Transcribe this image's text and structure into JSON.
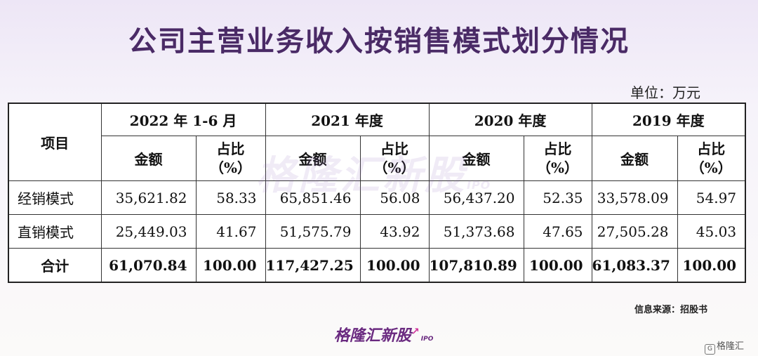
{
  "title": "公司主营业务收入按销售模式划分情况",
  "unit": "单位：万元",
  "watermark": {
    "text": "格隆汇新股",
    "sub": "IPO"
  },
  "table": {
    "item_header": "项目",
    "periods": [
      "2022 年 1-6 月",
      "2021 年度",
      "2020 年度",
      "2019 年度"
    ],
    "amount_header": "金额",
    "pct_header_line1": "占比",
    "pct_header_line2": "（%）",
    "rows": [
      {
        "label": "经销模式",
        "cells": [
          "35,621.82",
          "58.33",
          "65,851.46",
          "56.08",
          "56,437.20",
          "52.35",
          "33,578.09",
          "54.97"
        ]
      },
      {
        "label": "直销模式",
        "cells": [
          "25,449.03",
          "41.67",
          "51,575.79",
          "43.92",
          "51,373.68",
          "47.65",
          "27,505.28",
          "45.03"
        ]
      }
    ],
    "total": {
      "label": "合计",
      "cells": [
        "61,070.84",
        "100.00",
        "117,427.25",
        "100.00",
        "107,810.89",
        "100.00",
        "61,083.37",
        "100.00"
      ]
    }
  },
  "source": "信息来源：招股书",
  "logo": {
    "text": "格隆汇新股",
    "sub": "IPO"
  },
  "corner_brand": "格隆汇",
  "colors": {
    "title": "#4a2a66",
    "logo": "#6a2a80",
    "logo_arrow": "#d0339a"
  }
}
